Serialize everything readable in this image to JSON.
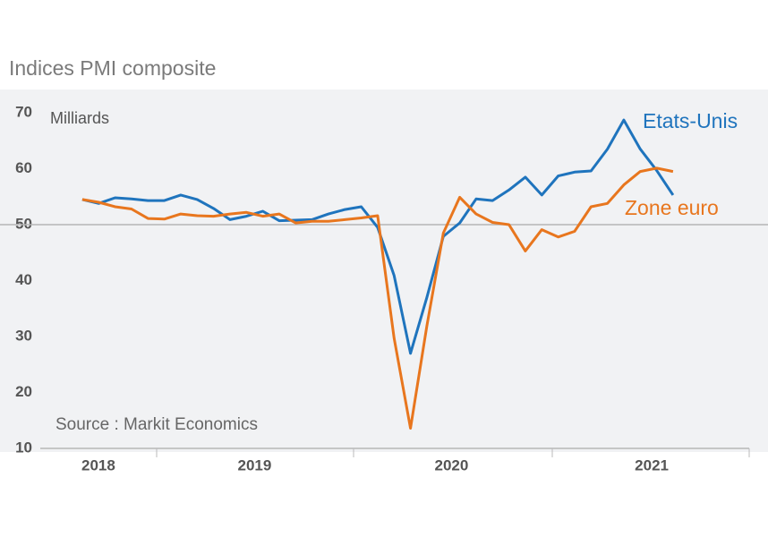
{
  "chart_data": {
    "type": "line",
    "title": "Indices PMI composite",
    "unit_label": "Milliards",
    "source": "Source : Markit Economics",
    "x": [
      0,
      1,
      2,
      3,
      4,
      5,
      6,
      7,
      8,
      9,
      10,
      11,
      12,
      13,
      14,
      15,
      16,
      17,
      18,
      19,
      20,
      21,
      22,
      23,
      24,
      25,
      26,
      27,
      28,
      29,
      30,
      31,
      32,
      33,
      34,
      35,
      36
    ],
    "xlim": [
      -2.56,
      40.64
    ],
    "xticks": [
      {
        "value": 0.98,
        "label": "2018"
      },
      {
        "value": 10.5,
        "label": "2019"
      },
      {
        "value": 22.5,
        "label": "2020"
      },
      {
        "value": 34.7,
        "label": "2021"
      }
    ],
    "ylim": [
      10,
      70
    ],
    "yticks": [
      10,
      20,
      30,
      40,
      50,
      60,
      70
    ],
    "reference_line": 50,
    "series": [
      {
        "name": "Etats-Unis",
        "color": "#1f74bd",
        "values": [
          54.5,
          53.8,
          54.8,
          54.6,
          54.3,
          54.3,
          55.3,
          54.5,
          52.9,
          50.9,
          51.5,
          52.4,
          50.7,
          50.8,
          50.9,
          51.9,
          52.7,
          53.2,
          49.5,
          40.9,
          27.0,
          37.0,
          47.9,
          50.3,
          54.6,
          54.3,
          56.2,
          58.5,
          55.3,
          58.7,
          59.4,
          59.6,
          63.5,
          68.7,
          63.5,
          59.7,
          55.3
        ]
      },
      {
        "name": "Zone euro",
        "color": "#e8761e",
        "values": [
          54.5,
          54.0,
          53.2,
          52.8,
          51.1,
          51.0,
          51.9,
          51.6,
          51.5,
          51.9,
          52.2,
          51.5,
          51.9,
          50.3,
          50.6,
          50.6,
          50.9,
          51.2,
          51.6,
          29.7,
          13.6,
          31.9,
          48.5,
          54.9,
          51.9,
          50.4,
          50.0,
          45.3,
          49.1,
          47.8,
          48.8,
          53.2,
          53.8,
          57.1,
          59.5,
          60.1,
          59.5
        ]
      }
    ]
  }
}
